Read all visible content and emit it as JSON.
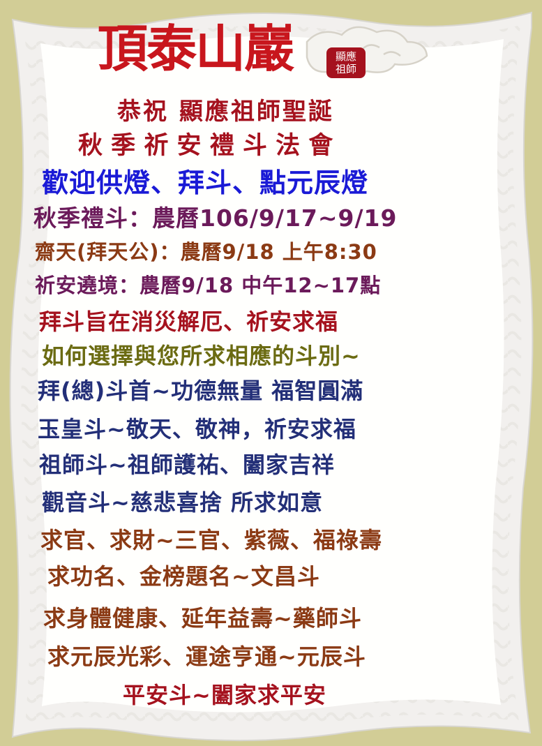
{
  "header": {
    "temple_name": "頂泰山巖",
    "seal_line1": "顯應",
    "seal_line2": "祖師"
  },
  "lines": [
    "恭祝 顯應祖師聖誕",
    "秋 季 祈 安 禮 斗 法 會",
    "歡迎供燈、拜斗、點元辰燈",
    "秋季禮斗：農曆106/9/17~9/19",
    "齋天(拜天公)：農曆9/18 上午8:30",
    "祈安遶境：農曆9/18 中午12~17點",
    "拜斗旨在消災解厄、祈安求福",
    "如何選擇與您所求相應的斗別~",
    "拜(總)斗首~功德無量 福智圓滿",
    "玉皇斗~敬天、敬神，祈安求福",
    "祖師斗~祖師護祐、闔家吉祥",
    "觀音斗~慈悲喜捨 所求如意",
    "求官、求財~三官、紫薇、福祿壽",
    "求功名、金榜題名~文昌斗",
    "求身體健康、延年益壽~藥師斗",
    "求元辰光彩、運途亨通~元辰斗",
    "平安斗~闔家求平安"
  ],
  "colors": {
    "background": "#d2cd96",
    "scroll": "#ffffff",
    "title_red": "#c8161d",
    "dark_red": "#a5121e",
    "blue": "#1a1ad6",
    "purple": "#6b1a5a",
    "brown": "#8b3a14",
    "olive": "#6b6b12",
    "navy": "#232f78"
  }
}
